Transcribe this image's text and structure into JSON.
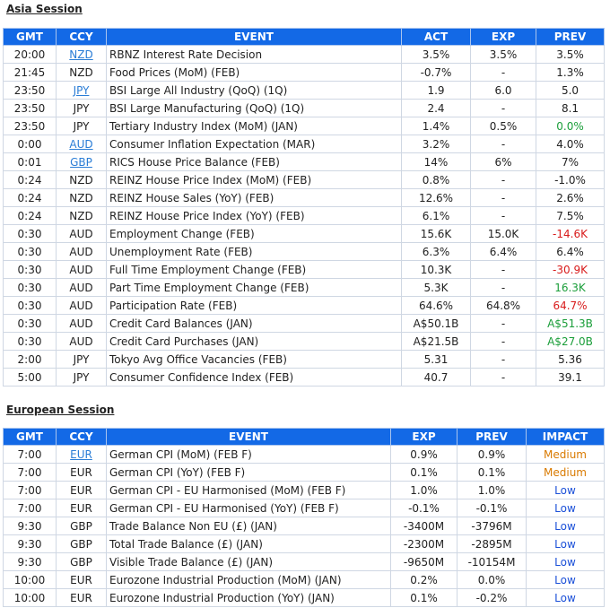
{
  "asia": {
    "title": "Asia Session",
    "headers": [
      "GMT",
      "CCY",
      "EVENT",
      "ACT",
      "EXP",
      "PREV"
    ],
    "rows": [
      {
        "gmt": "20:00",
        "ccy": "NZD",
        "link": true,
        "event": "RBNZ Interest Rate Decision",
        "act": "3.5%",
        "exp": "3.5%",
        "prev": "3.5%",
        "prev_color": ""
      },
      {
        "gmt": "21:45",
        "ccy": "NZD",
        "link": false,
        "event": "Food Prices (MoM) (FEB)",
        "act": "-0.7%",
        "exp": "-",
        "prev": "1.3%",
        "prev_color": ""
      },
      {
        "gmt": "23:50",
        "ccy": "JPY",
        "link": true,
        "event": "BSI Large All Industry (QoQ) (1Q)",
        "act": "1.9",
        "exp": "6.0",
        "prev": "5.0",
        "prev_color": ""
      },
      {
        "gmt": "23:50",
        "ccy": "JPY",
        "link": false,
        "event": "BSI Large Manufacturing (QoQ) (1Q)",
        "act": "2.4",
        "exp": "-",
        "prev": "8.1",
        "prev_color": ""
      },
      {
        "gmt": "23:50",
        "ccy": "JPY",
        "link": false,
        "event": "Tertiary Industry Index (MoM) (JAN)",
        "act": "1.4%",
        "exp": "0.5%",
        "prev": "0.0%",
        "prev_color": "green"
      },
      {
        "gmt": "0:00",
        "ccy": "AUD",
        "link": true,
        "event": "Consumer Inflation Expectation (MAR)",
        "act": "3.2%",
        "exp": "-",
        "prev": "4.0%",
        "prev_color": ""
      },
      {
        "gmt": "0:01",
        "ccy": "GBP",
        "link": true,
        "event": "RICS House Price Balance (FEB)",
        "act": "14%",
        "exp": "6%",
        "prev": "7%",
        "prev_color": ""
      },
      {
        "gmt": "0:24",
        "ccy": "NZD",
        "link": false,
        "event": "REINZ House Price Index (MoM) (FEB)",
        "act": "0.8%",
        "exp": "-",
        "prev": "-1.0%",
        "prev_color": ""
      },
      {
        "gmt": "0:24",
        "ccy": "NZD",
        "link": false,
        "event": "REINZ House Sales (YoY) (FEB)",
        "act": "12.6%",
        "exp": "-",
        "prev": "2.6%",
        "prev_color": ""
      },
      {
        "gmt": "0:24",
        "ccy": "NZD",
        "link": false,
        "event": "REINZ House Price Index (YoY) (FEB)",
        "act": "6.1%",
        "exp": "-",
        "prev": "7.5%",
        "prev_color": ""
      },
      {
        "gmt": "0:30",
        "ccy": "AUD",
        "link": false,
        "event": "Employment Change (FEB)",
        "act": "15.6K",
        "exp": "15.0K",
        "prev": "-14.6K",
        "prev_color": "red"
      },
      {
        "gmt": "0:30",
        "ccy": "AUD",
        "link": false,
        "event": "Unemployment Rate (FEB)",
        "act": "6.3%",
        "exp": "6.4%",
        "prev": "6.4%",
        "prev_color": ""
      },
      {
        "gmt": "0:30",
        "ccy": "AUD",
        "link": false,
        "event": "Full Time Employment Change (FEB)",
        "act": "10.3K",
        "exp": "-",
        "prev": "-30.9K",
        "prev_color": "red"
      },
      {
        "gmt": "0:30",
        "ccy": "AUD",
        "link": false,
        "event": "Part Time Employment Change (FEB)",
        "act": "5.3K",
        "exp": "-",
        "prev": "16.3K",
        "prev_color": "green"
      },
      {
        "gmt": "0:30",
        "ccy": "AUD",
        "link": false,
        "event": "Participation Rate (FEB)",
        "act": "64.6%",
        "exp": "64.8%",
        "prev": "64.7%",
        "prev_color": "red"
      },
      {
        "gmt": "0:30",
        "ccy": "AUD",
        "link": false,
        "event": "Credit Card Balances (JAN)",
        "act": "A$50.1B",
        "exp": "-",
        "prev": "A$51.3B",
        "prev_color": "green"
      },
      {
        "gmt": "0:30",
        "ccy": "AUD",
        "link": false,
        "event": "Credit Card Purchases (JAN)",
        "act": "A$21.5B",
        "exp": "-",
        "prev": "A$27.0B",
        "prev_color": "green"
      },
      {
        "gmt": "2:00",
        "ccy": "JPY",
        "link": false,
        "event": "Tokyo Avg Office Vacancies (FEB)",
        "act": "5.31",
        "exp": "-",
        "prev": "5.36",
        "prev_color": ""
      },
      {
        "gmt": "5:00",
        "ccy": "JPY",
        "link": false,
        "event": "Consumer Confidence Index (FEB)",
        "act": "40.7",
        "exp": "-",
        "prev": "39.1",
        "prev_color": ""
      }
    ]
  },
  "europe": {
    "title": "European Session",
    "headers": [
      "GMT",
      "CCY",
      "EVENT",
      "EXP",
      "PREV",
      "IMPACT"
    ],
    "rows": [
      {
        "gmt": "7:00",
        "ccy": "EUR",
        "link": true,
        "event": "German CPI (MoM) (FEB F)",
        "exp": "0.9%",
        "prev": "0.9%",
        "impact": "Medium",
        "impact_color": "medium"
      },
      {
        "gmt": "7:00",
        "ccy": "EUR",
        "link": false,
        "event": "German CPI (YoY) (FEB F)",
        "exp": "0.1%",
        "prev": "0.1%",
        "impact": "Medium",
        "impact_color": "medium"
      },
      {
        "gmt": "7:00",
        "ccy": "EUR",
        "link": false,
        "event": "German CPI - EU Harmonised (MoM) (FEB F)",
        "exp": "1.0%",
        "prev": "1.0%",
        "impact": "Low",
        "impact_color": "low"
      },
      {
        "gmt": "7:00",
        "ccy": "EUR",
        "link": false,
        "event": "German CPI - EU Harmonised (YoY) (FEB F)",
        "exp": "-0.1%",
        "prev": "-0.1%",
        "impact": "Low",
        "impact_color": "low"
      },
      {
        "gmt": "9:30",
        "ccy": "GBP",
        "link": false,
        "event": "Trade Balance Non EU (£) (JAN)",
        "exp": "-3400M",
        "prev": "-3796M",
        "impact": "Low",
        "impact_color": "low"
      },
      {
        "gmt": "9:30",
        "ccy": "GBP",
        "link": false,
        "event": "Total Trade Balance (£) (JAN)",
        "exp": "-2300M",
        "prev": "-2895M",
        "impact": "Low",
        "impact_color": "low"
      },
      {
        "gmt": "9:30",
        "ccy": "GBP",
        "link": false,
        "event": "Visible Trade Balance (£) (JAN)",
        "exp": "-9650M",
        "prev": "-10154M",
        "impact": "Low",
        "impact_color": "low"
      },
      {
        "gmt": "10:00",
        "ccy": "EUR",
        "link": false,
        "event": "Eurozone Industrial Production (MoM) (JAN)",
        "exp": "0.2%",
        "prev": "0.0%",
        "impact": "Low",
        "impact_color": "low"
      },
      {
        "gmt": "10:00",
        "ccy": "EUR",
        "link": false,
        "event": "Eurozone Industrial Production (YoY) (JAN)",
        "exp": "0.1%",
        "prev": "-0.2%",
        "impact": "Low",
        "impact_color": "low"
      }
    ]
  }
}
